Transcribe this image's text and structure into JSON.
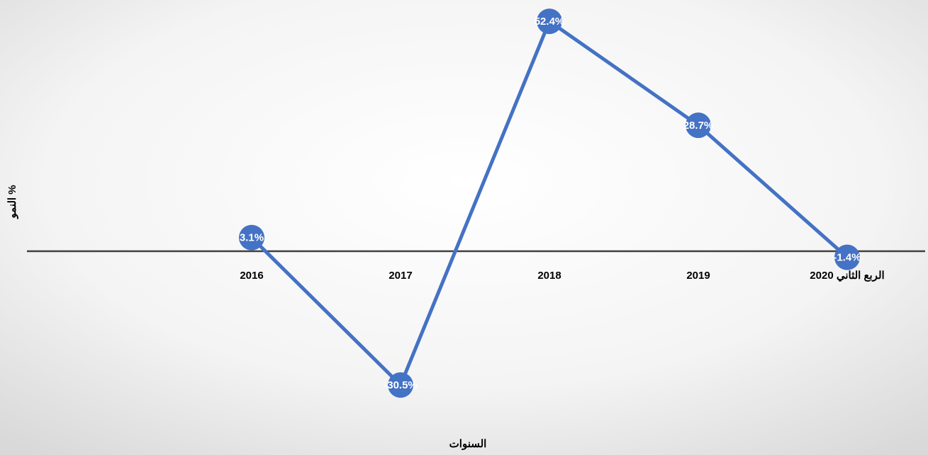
{
  "chart_data": {
    "type": "line",
    "categories": [
      "2016",
      "2017",
      "2018",
      "2019",
      "الربع الثاني 2020"
    ],
    "series": [
      {
        "name": "% النمو",
        "color": "#4472c4",
        "values": [
          3.1,
          -30.5,
          52.4,
          28.7,
          -1.4
        ],
        "value_labels": [
          "3.1%",
          "-30.5%",
          "52.4%",
          "28.7%",
          "-1.4%"
        ]
      }
    ],
    "x_label": "السنوات",
    "y_label": "% النمو",
    "ylim": [
      -40,
      55
    ]
  }
}
